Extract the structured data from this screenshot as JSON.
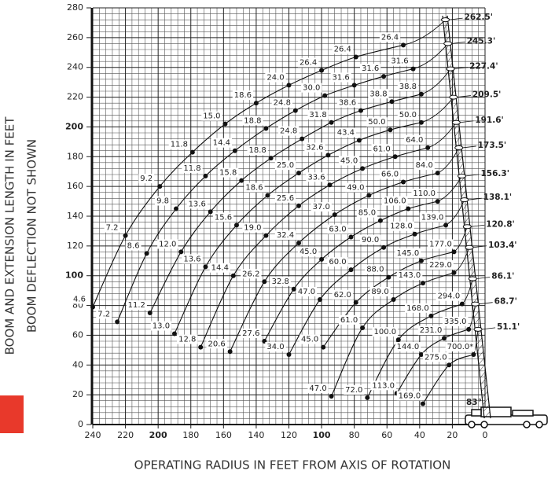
{
  "chart_data": {
    "type": "load-chart",
    "y_label": "BOOM AND EXTENSION LENGTH IN FEET",
    "y_label_2": "BOOM DEFLECTION NOT SHOWN",
    "x_label": "OPERATING RADIUS IN FEET FROM AXIS OF ROTATION",
    "angle_label": "83°",
    "xlim": [
      240,
      0
    ],
    "ylim": [
      0,
      280
    ],
    "xticks": [
      240,
      220,
      200,
      180,
      160,
      140,
      120,
      100,
      80,
      60,
      40,
      20,
      0
    ],
    "yticks": [
      0,
      20,
      40,
      60,
      80,
      100,
      120,
      140,
      160,
      180,
      200,
      220,
      240,
      260,
      280
    ],
    "bold_ticks": [
      100,
      200
    ],
    "grid": true,
    "color": "#111111",
    "series": [
      {
        "name": "262.5'",
        "x": [
          50,
          79,
          100,
          120,
          140,
          159,
          179,
          199,
          220,
          240
        ],
        "values": [
          255,
          247,
          238,
          228,
          216,
          202,
          183,
          160,
          127,
          79
        ],
        "capacity_labels": [
          "26.4",
          "26.4",
          "26.4",
          "24.0",
          "18.6",
          "15.0",
          "11.8",
          "9.2",
          "7.2",
          "4.6"
        ]
      },
      {
        "name": "245.3'",
        "x": [
          44,
          62,
          80,
          98,
          116,
          134,
          153,
          171,
          189,
          207,
          225
        ],
        "values": [
          239,
          234,
          228,
          221,
          211,
          199,
          184,
          167,
          145,
          115,
          69
        ],
        "capacity_labels": [
          "31.6",
          "31.6",
          "31.6",
          "30.0",
          "24.8",
          "18.8",
          "14.4",
          "11.8",
          "9.8",
          "8.6",
          "7.2"
        ]
      },
      {
        "name": "227.4'",
        "x": [
          39,
          57,
          76,
          94,
          112,
          131,
          149,
          168,
          186,
          205
        ],
        "values": [
          222,
          217,
          211,
          203,
          192,
          179,
          164,
          143,
          116,
          75
        ],
        "capacity_labels": [
          "38.8",
          "38.8",
          "38.6",
          "31.8",
          "24.8",
          "18.8",
          "15.8",
          "13.6",
          "12.0",
          "11.2"
        ]
      },
      {
        "name": "209.5'",
        "x": [
          39,
          58,
          77,
          96,
          114,
          133,
          152,
          171,
          190
        ],
        "values": [
          203,
          198,
          191,
          181,
          169,
          154,
          134,
          106,
          61
        ],
        "capacity_labels": [
          "50.0",
          "50.0",
          "43.4",
          "32.6",
          "25.0",
          "18.6",
          "15.6",
          "13.6",
          "13.0"
        ]
      },
      {
        "name": "191.6'",
        "x": [
          35,
          55,
          75,
          95,
          114,
          134,
          154,
          174
        ],
        "values": [
          186,
          180,
          172,
          161,
          147,
          127,
          100,
          52
        ],
        "capacity_labels": [
          "64.0",
          "61.0",
          "45.0",
          "33.6",
          "25.6",
          "19.0",
          "14.4",
          "12.8"
        ]
      },
      {
        "name": "173.5'",
        "x": [
          29,
          50,
          71,
          92,
          114,
          135,
          156
        ],
        "values": [
          169,
          163,
          154,
          141,
          122,
          96,
          49
        ],
        "capacity_labels": [
          "84.0",
          "66.0",
          "49.0",
          "37.0",
          "32.4",
          "26.2",
          "20.6"
        ]
      },
      {
        "name": "156.3'",
        "x": [
          29,
          47,
          64,
          82,
          100,
          117,
          135
        ],
        "values": [
          150,
          145,
          137,
          126,
          111,
          91,
          56
        ],
        "capacity_labels": [
          "110.0",
          "106.0",
          "85.0",
          "63.0",
          "45.0",
          "32.8",
          "27.6"
        ]
      },
      {
        "name": "138.1'",
        "x": [
          24,
          43,
          62,
          82,
          101,
          120
        ],
        "values": [
          134,
          128,
          119,
          104,
          84,
          47
        ],
        "capacity_labels": [
          "139.0",
          "128.0",
          "90.0",
          "60.0",
          "47.0",
          "34.0"
        ]
      },
      {
        "name": "120.8'",
        "x": [
          19,
          39,
          59,
          79,
          99
        ],
        "values": [
          116,
          110,
          99,
          82,
          52
        ],
        "capacity_labels": [
          "177.0",
          "145.0",
          "88.0",
          "62.0",
          "45.0"
        ]
      },
      {
        "name": "103.4'",
        "x": [
          19,
          38,
          56,
          75,
          94
        ],
        "values": [
          102,
          95,
          84,
          65,
          19
        ],
        "capacity_labels": [
          "229.0",
          "143.0",
          "89.0",
          "61.0",
          "47.0"
        ]
      },
      {
        "name": "86.1'",
        "x": [
          14,
          33,
          53,
          72
        ],
        "values": [
          81,
          73,
          57,
          18
        ],
        "capacity_labels": [
          "294.0",
          "168.0",
          "100.0",
          "72.0"
        ]
      },
      {
        "name": "68.7'",
        "x": [
          10,
          25,
          39,
          54
        ],
        "values": [
          64,
          58,
          47,
          21
        ],
        "capacity_labels": [
          "335.0",
          "231.0",
          "144.0",
          "113.0"
        ]
      },
      {
        "name": "51.1'",
        "x": [
          7,
          22,
          38
        ],
        "values": [
          47,
          40,
          14
        ],
        "capacity_labels": [
          "700.0*",
          "275.0",
          "169.0"
        ]
      }
    ]
  }
}
